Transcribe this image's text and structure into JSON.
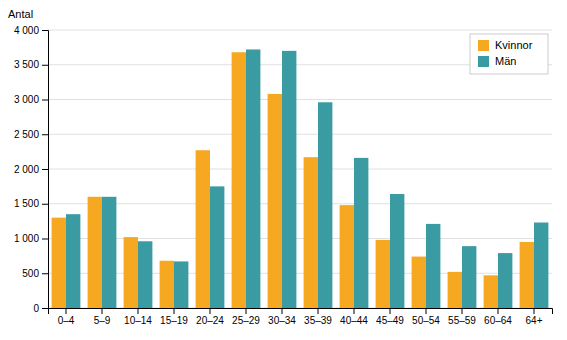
{
  "chart_data": {
    "type": "bar",
    "ylabel": "Antal",
    "categories": [
      "0–4",
      "5–9",
      "10–14",
      "15–19",
      "20–24",
      "25–29",
      "30–34",
      "35–39",
      "40–44",
      "45–49",
      "50–54",
      "55–59",
      "60–64",
      "64+"
    ],
    "series": [
      {
        "name": "Kvinnor",
        "color": "#F5A820",
        "values": [
          1300,
          1600,
          1020,
          680,
          2270,
          3680,
          3080,
          2170,
          1480,
          980,
          740,
          520,
          470,
          950
        ]
      },
      {
        "name": "Män",
        "color": "#3A9BA3",
        "values": [
          1350,
          1600,
          960,
          670,
          1750,
          3720,
          3700,
          2960,
          2160,
          1640,
          1210,
          890,
          790,
          1230
        ]
      }
    ],
    "ylim": [
      0,
      4000
    ],
    "yticks": [
      0,
      500,
      {
        "value": 1000,
        "label": "1 000"
      },
      {
        "value": 1500,
        "label": "1 500"
      },
      {
        "value": 2000,
        "label": "2 000"
      },
      {
        "value": 2500,
        "label": "2 500"
      },
      {
        "value": 3000,
        "label": "3 000"
      },
      {
        "value": 3500,
        "label": "3 500"
      },
      {
        "value": 4000,
        "label": "4 000"
      }
    ],
    "grid": true,
    "legend": "upper right"
  }
}
